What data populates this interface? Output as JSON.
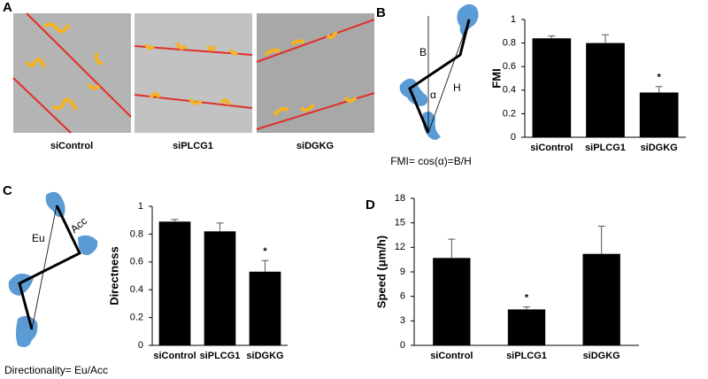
{
  "panel_labels": [
    "A",
    "B",
    "C",
    "D"
  ],
  "images": {
    "captions": [
      "siControl",
      "siPLCG1",
      "siDGKG"
    ]
  },
  "diagrams": {
    "fmi": {
      "labels": [
        "B",
        "H",
        "α"
      ],
      "caption": "FMI= cos(α)=B/H"
    },
    "directionality": {
      "labels": [
        "Eu",
        "Acc"
      ],
      "caption": "Directionality= Eu/Acc"
    }
  },
  "chart_data": [
    {
      "type": "bar",
      "y_label": "FMI",
      "categories": [
        "siControl",
        "siPLCG1",
        "siDGKG"
      ],
      "values": [
        0.84,
        0.8,
        0.38
      ],
      "errors": [
        0.02,
        0.07,
        0.05
      ],
      "significance": [
        null,
        null,
        "*"
      ],
      "color": "#000000",
      "ylim": [
        0,
        1
      ],
      "yticks": [
        0,
        0.2,
        0.4,
        0.6,
        0.8,
        1
      ]
    },
    {
      "type": "bar",
      "y_label": "Directness",
      "categories": [
        "siControl",
        "siPLCG1",
        "siDGKG"
      ],
      "values": [
        0.89,
        0.82,
        0.53
      ],
      "errors": [
        0.015,
        0.06,
        0.08
      ],
      "significance": [
        null,
        null,
        "*"
      ],
      "color": "#000000",
      "ylim": [
        0,
        1
      ],
      "yticks": [
        0,
        0.2,
        0.4,
        0.6,
        0.8,
        1
      ]
    },
    {
      "type": "bar",
      "y_label": "Speed (μm/h)",
      "categories": [
        "siControl",
        "siPLCG1",
        "siDGKG"
      ],
      "values": [
        10.7,
        4.4,
        11.2
      ],
      "errors": [
        2.3,
        0.3,
        3.4
      ],
      "significance": [
        null,
        "*",
        null
      ],
      "color": "#000000",
      "ylim": [
        0,
        18
      ],
      "yticks": [
        0,
        3,
        6,
        9,
        12,
        15,
        18
      ]
    }
  ]
}
